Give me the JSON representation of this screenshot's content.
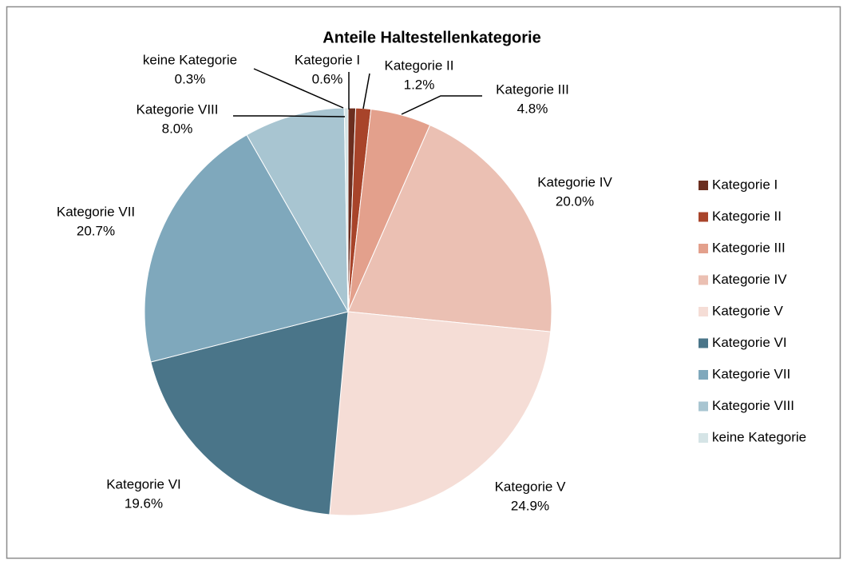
{
  "chart_data": {
    "type": "pie",
    "title": "Anteile Haltestellenkategorie",
    "categories": [
      "Kategorie I",
      "Kategorie II",
      "Kategorie III",
      "Kategorie IV",
      "Kategorie V",
      "Kategorie VI",
      "Kategorie VII",
      "Kategorie VIII",
      "keine Kategorie"
    ],
    "values": [
      0.6,
      1.2,
      4.8,
      20.0,
      24.9,
      19.6,
      20.7,
      8.0,
      0.3
    ],
    "value_labels": [
      "0.6%",
      "1.2%",
      "4.8%",
      "20.0%",
      "24.9%",
      "19.6%",
      "20.7%",
      "8.0%",
      "0.3%"
    ],
    "colors": [
      "#6b2e1f",
      "#a8442a",
      "#e3a08c",
      "#ebc0b3",
      "#f5ddd6",
      "#4a7589",
      "#7fa8bc",
      "#a8c5d1",
      "#d5e4e6"
    ],
    "legend": "right"
  }
}
